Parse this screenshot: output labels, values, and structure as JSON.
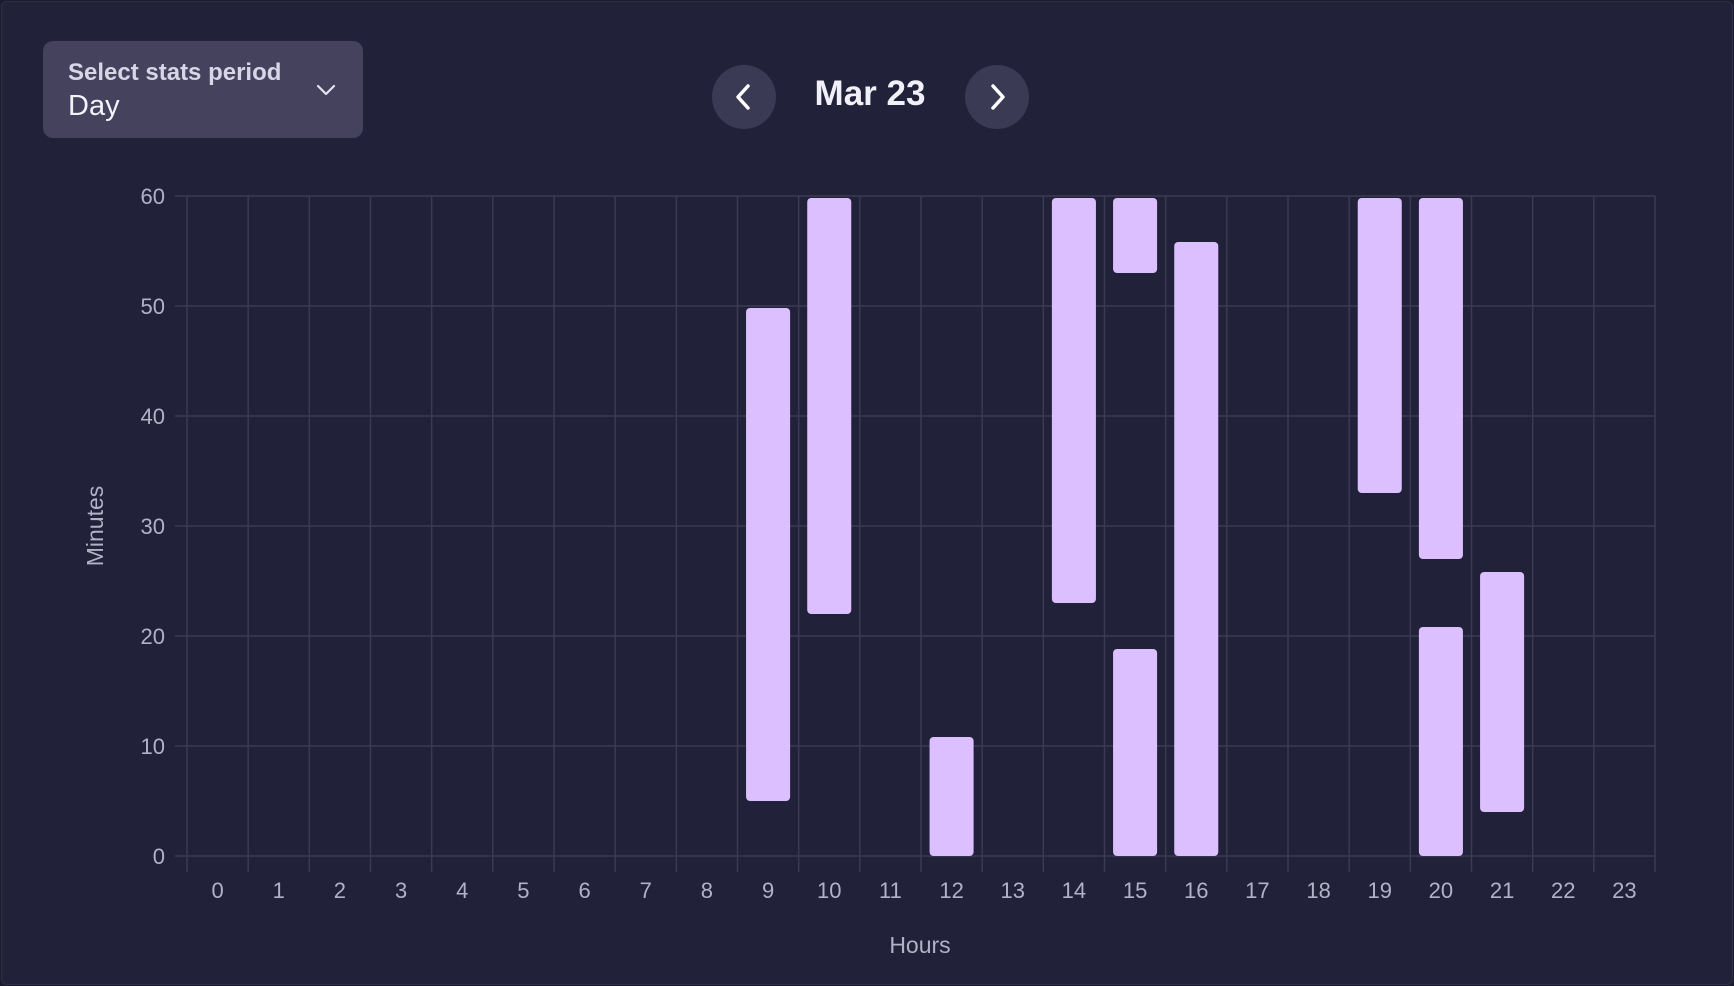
{
  "controls": {
    "period_label": "Select stats period",
    "period_value": "Day",
    "date": "Mar 23"
  },
  "colors": {
    "background": "#21213a",
    "grid": "#3a3a55",
    "bar": "#dcbfff",
    "text": "#b3b1c8"
  },
  "chart_data": {
    "type": "bar",
    "subtype": "floating-range",
    "xlabel": "Hours",
    "ylabel": "Minutes",
    "categories": [
      "0",
      "1",
      "2",
      "3",
      "4",
      "5",
      "6",
      "7",
      "8",
      "9",
      "10",
      "11",
      "12",
      "13",
      "14",
      "15",
      "16",
      "17",
      "18",
      "19",
      "20",
      "21",
      "22",
      "23"
    ],
    "ylim": [
      0,
      60
    ],
    "yticks": [
      0,
      10,
      20,
      30,
      40,
      50,
      60
    ],
    "grid": true,
    "ranges": [
      {
        "hour": 9,
        "start": 5,
        "end": 50
      },
      {
        "hour": 10,
        "start": 22,
        "end": 60
      },
      {
        "hour": 12,
        "start": 0,
        "end": 11
      },
      {
        "hour": 14,
        "start": 23,
        "end": 60
      },
      {
        "hour": 15,
        "start": 53,
        "end": 60
      },
      {
        "hour": 15,
        "start": 0,
        "end": 19
      },
      {
        "hour": 16,
        "start": 0,
        "end": 56
      },
      {
        "hour": 19,
        "start": 33,
        "end": 60
      },
      {
        "hour": 20,
        "start": 27,
        "end": 60
      },
      {
        "hour": 20,
        "start": 0,
        "end": 21
      },
      {
        "hour": 21,
        "start": 4,
        "end": 26
      }
    ]
  }
}
